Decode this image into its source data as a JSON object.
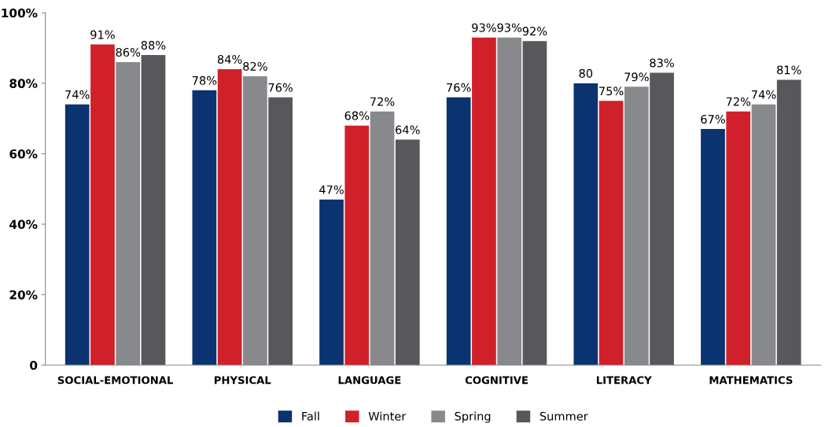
{
  "chart_data": {
    "type": "bar",
    "categories": [
      "SOCIAL-EMOTIONAL",
      "PHYSICAL",
      "LANGUAGE",
      "COGNITIVE",
      "LITERACY",
      "MATHEMATICS"
    ],
    "series": [
      {
        "name": "Fall",
        "color": "#0a3370",
        "values": [
          74,
          78,
          47,
          76,
          80,
          67
        ],
        "value_labels": [
          "74%",
          "78%",
          "47%",
          "76%",
          "80",
          "67%"
        ]
      },
      {
        "name": "Winter",
        "color": "#d0202a",
        "values": [
          91,
          84,
          68,
          93,
          75,
          72
        ],
        "value_labels": [
          "91%",
          "84%",
          "68%",
          "93%",
          "75%",
          "72%"
        ]
      },
      {
        "name": "Spring",
        "color": "#87898c",
        "values": [
          86,
          82,
          72,
          93,
          79,
          74
        ],
        "value_labels": [
          "86%",
          "82%",
          "72%",
          "93%",
          "79%",
          "74%"
        ]
      },
      {
        "name": "Summer",
        "color": "#58585c",
        "values": [
          88,
          76,
          64,
          92,
          83,
          81
        ],
        "value_labels": [
          "88%",
          "76%",
          "64%",
          "92%",
          "83%",
          "81%"
        ]
      }
    ],
    "ylim": [
      0,
      100
    ],
    "yticks": [
      {
        "value": 0,
        "label": "0"
      },
      {
        "value": 20,
        "label": "20%"
      },
      {
        "value": 40,
        "label": "40%"
      },
      {
        "value": 60,
        "label": "60%"
      },
      {
        "value": 80,
        "label": "80%"
      },
      {
        "value": 100,
        "label": "100%"
      }
    ],
    "grid": false,
    "legend": "bottom"
  }
}
